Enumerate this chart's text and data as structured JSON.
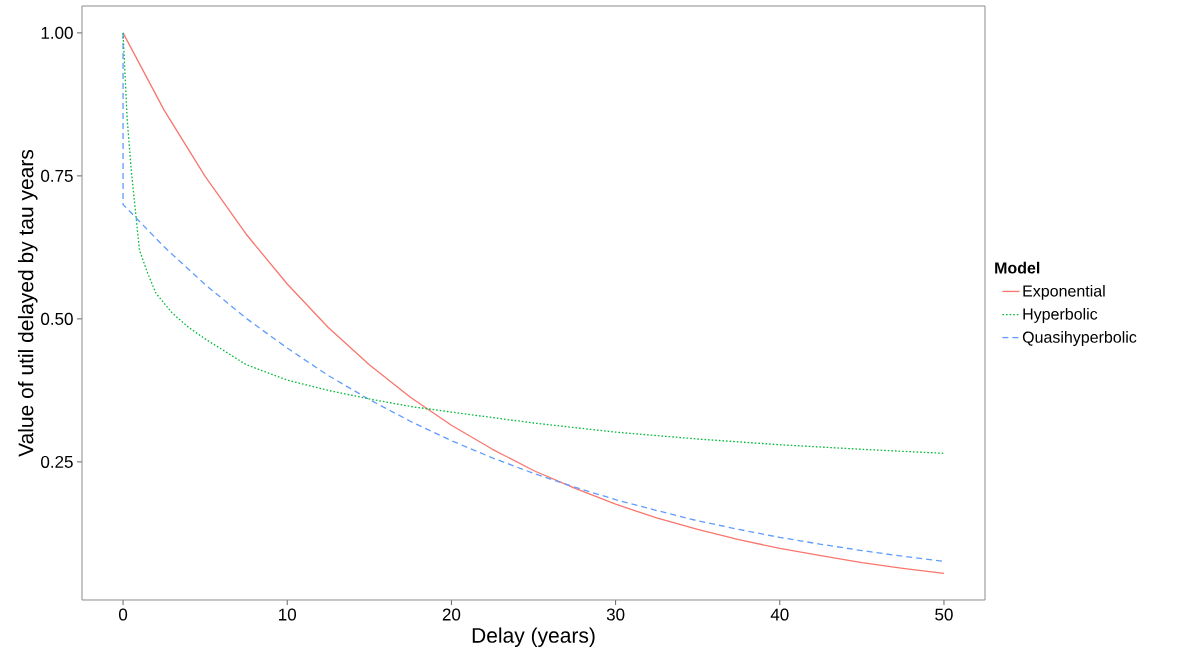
{
  "chart_data": {
    "type": "line",
    "xlabel": "Delay (years)",
    "ylabel": "Value of util delayed by tau years",
    "legend_title": "Model",
    "legend": "right",
    "grid": false,
    "xlim": [
      -2.5,
      52.5
    ],
    "ylim": [
      0.0086,
      1.047
    ],
    "xticks": [
      0,
      10,
      20,
      30,
      40,
      50
    ],
    "yticks": [
      {
        "value": 0.25,
        "label": "0.25"
      },
      {
        "value": 0.5,
        "label": "0.50"
      },
      {
        "value": 0.75,
        "label": "0.75"
      },
      {
        "value": 1,
        "label": "1.00"
      }
    ],
    "series": [
      {
        "name": "Exponential",
        "color": "#f8766d",
        "line_style": "solid",
        "x": [
          0,
          2.5,
          5,
          7.5,
          10,
          12.5,
          15,
          17.5,
          20,
          22.5,
          25,
          27.5,
          30,
          32.5,
          35,
          37.5,
          40,
          42.5,
          45,
          47.5,
          50
        ],
        "values": [
          1,
          0.865,
          0.749,
          0.648,
          0.561,
          0.485,
          0.42,
          0.363,
          0.314,
          0.272,
          0.235,
          0.204,
          0.176,
          0.152,
          0.132,
          0.114,
          0.099,
          0.086,
          0.074,
          0.064,
          0.055
        ]
      },
      {
        "name": "Hyperbolic",
        "color": "#00ba38",
        "line_style": "dotted",
        "x": [
          0,
          0.25,
          0.5,
          1,
          1.5,
          2,
          3,
          4,
          5,
          7.5,
          10,
          12.5,
          15,
          17.5,
          20,
          25,
          30,
          35,
          40,
          45,
          50
        ],
        "values": [
          1,
          0.85,
          0.76,
          0.62,
          0.58,
          0.545,
          0.51,
          0.485,
          0.465,
          0.42,
          0.393,
          0.375,
          0.36,
          0.347,
          0.337,
          0.318,
          0.302,
          0.29,
          0.28,
          0.272,
          0.265
        ]
      },
      {
        "name": "Quasihyperbolic",
        "color": "#619cff",
        "line_style": "dashed",
        "x": [
          0,
          0,
          2.5,
          5,
          7.5,
          10,
          12.5,
          15,
          17.5,
          20,
          22.5,
          25,
          27.5,
          30,
          32.5,
          35,
          37.5,
          40,
          42.5,
          45,
          47.5,
          50
        ],
        "values": [
          1,
          0.7,
          0.626,
          0.56,
          0.501,
          0.449,
          0.401,
          0.359,
          0.321,
          0.287,
          0.257,
          0.23,
          0.206,
          0.184,
          0.165,
          0.147,
          0.132,
          0.118,
          0.106,
          0.095,
          0.085,
          0.076
        ]
      }
    ]
  }
}
